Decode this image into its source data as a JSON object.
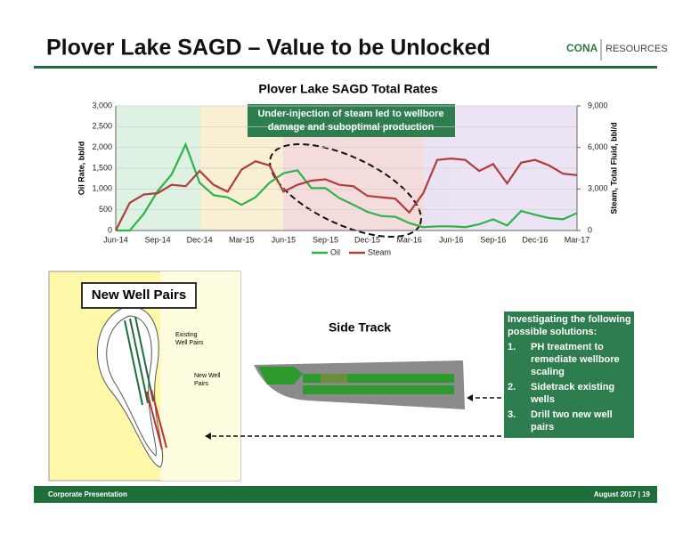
{
  "header": {
    "title": "Plover Lake SAGD – Value to be Unlocked",
    "logo": "CONA",
    "logo_sub": "RESOURCES"
  },
  "chart_data": {
    "type": "line",
    "title": "Plover Lake SAGD Total Rates",
    "categories": [
      "Jun-14",
      null,
      null,
      "Sep-14",
      null,
      null,
      "Dec-14",
      null,
      null,
      "Mar-15",
      null,
      null,
      "Jun-15",
      null,
      null,
      "Sep-15",
      null,
      null,
      "Dec-15",
      null,
      null,
      "Mar-16",
      null,
      null,
      "Jun-16",
      null,
      null,
      "Sep-16",
      null,
      null,
      "Dec-16",
      null,
      null,
      "Mar-17"
    ],
    "series": [
      {
        "name": "Oil",
        "color": "#2db34a",
        "values": [
          0,
          0,
          400,
          950,
          1350,
          2070,
          1150,
          850,
          800,
          620,
          800,
          1150,
          1380,
          1450,
          1020,
          1020,
          780,
          620,
          450,
          350,
          330,
          180,
          80,
          100,
          100,
          80,
          150,
          270,
          120,
          470,
          380,
          300,
          270,
          420
        ]
      },
      {
        "name": "Steam",
        "color": "#b03c3c",
        "axis": "y2",
        "values": [
          0,
          2000,
          2600,
          2700,
          3300,
          3200,
          4300,
          3300,
          2800,
          4400,
          5000,
          4700,
          2800,
          3300,
          3600,
          3700,
          3300,
          3200,
          2500,
          2400,
          2300,
          1300,
          2700,
          5100,
          5200,
          5100,
          4300,
          4800,
          3400,
          4900,
          5100,
          4700,
          4100,
          4000
        ]
      }
    ],
    "ylim": [
      0,
      3000
    ],
    "yticks": [
      0,
      500,
      {
        "value": 1000,
        "label": "1,000"
      },
      {
        "value": 1500,
        "label": "1,500"
      },
      {
        "value": 2000,
        "label": "2,000"
      },
      {
        "value": 2500,
        "label": "2,500"
      },
      {
        "value": 3000,
        "label": "3,000"
      }
    ],
    "y2lim": [
      0,
      9000
    ],
    "y2ticks": [
      0,
      {
        "value": 3000,
        "label": "3,000"
      },
      {
        "value": 6000,
        "label": "6,000"
      },
      {
        "value": 9000,
        "label": "9,000"
      }
    ],
    "ylabel": "Oil Rate, bbl/d",
    "y2label": "Steam, Total Fluid, bbl/d",
    "annotation": [
      "Under-injection of steam led to wellbore",
      "damage and suboptimal production"
    ],
    "legend": "bottom"
  },
  "map": {
    "title": "New Well Pairs",
    "label_existing": [
      "Existing",
      "Well Pairs"
    ],
    "label_new": [
      "New Well",
      "Pairs"
    ]
  },
  "side_track": {
    "title": "Side Track"
  },
  "callout": {
    "heading": [
      "Investigating the following",
      "possible solutions:"
    ],
    "items": [
      {
        "number": "1.",
        "lines": [
          "PH treatment to",
          "remediate wellbore",
          "scaling"
        ]
      },
      {
        "number": "2.",
        "lines": [
          "Sidetrack existing",
          "wells"
        ]
      },
      {
        "number": "3.",
        "lines": [
          "Drill two new well",
          "pairs"
        ]
      }
    ]
  },
  "footer": {
    "left": "Corporate Presentation",
    "right": "August 2017 | 19"
  }
}
